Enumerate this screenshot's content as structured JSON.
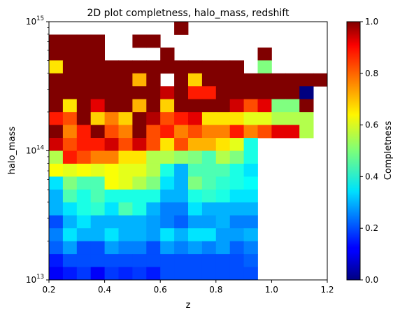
{
  "chart_data": {
    "type": "heatmap",
    "title": "2D plot completness, halo_mass, redshift",
    "xlabel": "z",
    "ylabel": "halo_mass",
    "x_range": [
      0.2,
      1.2
    ],
    "y_range": [
      10000000000000.0,
      1000000000000000.0
    ],
    "y_scale": "log",
    "x_bin_count": 20,
    "y_bin_count": 20,
    "colormap": "jet",
    "colorbar": {
      "label": "Completness",
      "range": [
        0,
        1
      ],
      "ticks": [
        "0.0",
        "0.2",
        "0.4",
        "0.6",
        "0.8",
        "1.0"
      ]
    },
    "x_ticks": [
      {
        "value": 0.2,
        "label": "0.2"
      },
      {
        "value": 0.4,
        "label": "0.4"
      },
      {
        "value": 0.6,
        "label": "0.6"
      },
      {
        "value": 0.8,
        "label": "0.8"
      },
      {
        "value": 1.0,
        "label": "1.0"
      },
      {
        "value": 1.2,
        "label": "1.2"
      }
    ],
    "y_ticks": [
      {
        "value": 10000000000000.0,
        "base": "10",
        "exp": "13"
      },
      {
        "value": 100000000000000.0,
        "base": "10",
        "exp": "14"
      },
      {
        "value": 1000000000000000.0,
        "base": "10",
        "exp": "15"
      }
    ],
    "grid": false,
    "note_rows": "values[0] is the top (highest mass) row, values[19] the bottom; null = empty bin",
    "values": [
      [
        null,
        null,
        null,
        null,
        null,
        null,
        null,
        null,
        null,
        1.0,
        null,
        null,
        null,
        null,
        null,
        null,
        null,
        null,
        null,
        null
      ],
      [
        1.0,
        1.0,
        1.0,
        1.0,
        null,
        null,
        1.0,
        1.0,
        null,
        null,
        null,
        null,
        null,
        null,
        null,
        null,
        null,
        null,
        null,
        null
      ],
      [
        1.0,
        1.0,
        1.0,
        1.0,
        null,
        null,
        null,
        null,
        1.0,
        null,
        null,
        null,
        null,
        null,
        null,
        1.0,
        null,
        null,
        null,
        null
      ],
      [
        0.65,
        1.0,
        1.0,
        1.0,
        1.0,
        1.0,
        1.0,
        1.0,
        1.0,
        1.0,
        1.0,
        1.0,
        1.0,
        1.0,
        null,
        0.5,
        null,
        null,
        null,
        null
      ],
      [
        1.0,
        1.0,
        1.0,
        1.0,
        1.0,
        1.0,
        0.7,
        1.0,
        null,
        1.0,
        0.67,
        1.0,
        1.0,
        1.0,
        1.0,
        1.0,
        1.0,
        1.0,
        1.0,
        1.0
      ],
      [
        1.0,
        1.0,
        1.0,
        1.0,
        1.0,
        1.0,
        1.0,
        1.0,
        0.93,
        1.0,
        0.85,
        0.85,
        1.0,
        1.0,
        1.0,
        1.0,
        1.0,
        1.0,
        0.0,
        null
      ],
      [
        1.0,
        0.65,
        1.0,
        0.9,
        1.0,
        1.0,
        0.7,
        1.0,
        0.67,
        1.0,
        1.0,
        1.0,
        1.0,
        0.92,
        0.8,
        0.9,
        0.5,
        0.5,
        1.0,
        null
      ],
      [
        0.85,
        0.8,
        1.0,
        0.67,
        0.75,
        0.67,
        1.0,
        0.95,
        0.8,
        0.85,
        0.9,
        0.65,
        0.65,
        0.65,
        0.6,
        0.6,
        0.55,
        0.55,
        0.55,
        null
      ],
      [
        1.0,
        0.75,
        0.85,
        1.0,
        0.8,
        0.75,
        1.0,
        0.8,
        0.85,
        0.75,
        0.8,
        0.75,
        0.75,
        0.85,
        0.75,
        0.8,
        0.9,
        0.9,
        0.55,
        null
      ],
      [
        0.92,
        0.8,
        0.85,
        0.85,
        0.92,
        0.8,
        0.92,
        0.8,
        0.65,
        0.8,
        0.7,
        0.7,
        0.65,
        0.6,
        0.4,
        null,
        null,
        null,
        null,
        null
      ],
      [
        0.55,
        0.85,
        0.8,
        0.75,
        0.75,
        0.65,
        0.65,
        0.55,
        0.55,
        0.52,
        0.5,
        0.45,
        0.55,
        0.5,
        0.4,
        null,
        null,
        null,
        null,
        null
      ],
      [
        0.62,
        0.6,
        0.62,
        0.6,
        0.62,
        0.6,
        0.6,
        0.55,
        0.4,
        0.3,
        0.45,
        0.45,
        0.45,
        0.4,
        0.35,
        null,
        null,
        null,
        null,
        null
      ],
      [
        0.35,
        0.5,
        0.45,
        0.45,
        0.62,
        0.6,
        0.55,
        0.5,
        0.35,
        0.3,
        0.5,
        0.45,
        0.42,
        0.4,
        0.38,
        null,
        null,
        null,
        null,
        null
      ],
      [
        0.3,
        0.45,
        0.4,
        0.45,
        0.4,
        0.4,
        0.4,
        0.4,
        0.3,
        0.3,
        0.4,
        0.42,
        0.4,
        0.35,
        0.35,
        null,
        null,
        null,
        null,
        null
      ],
      [
        0.3,
        0.35,
        0.4,
        0.42,
        0.35,
        0.45,
        0.4,
        0.3,
        0.25,
        0.25,
        0.35,
        0.3,
        0.3,
        0.3,
        0.3,
        null,
        null,
        null,
        null,
        null
      ],
      [
        0.2,
        0.3,
        0.35,
        0.3,
        0.3,
        0.3,
        0.3,
        0.28,
        0.25,
        0.22,
        0.28,
        0.28,
        0.3,
        0.25,
        0.25,
        null,
        null,
        null,
        null,
        null
      ],
      [
        0.25,
        0.35,
        0.3,
        0.3,
        0.35,
        0.3,
        0.3,
        0.28,
        0.35,
        0.3,
        0.35,
        0.35,
        0.28,
        0.28,
        0.3,
        null,
        null,
        null,
        null,
        null
      ],
      [
        0.22,
        0.28,
        0.2,
        0.2,
        0.28,
        0.25,
        0.25,
        0.2,
        0.28,
        0.25,
        0.28,
        0.25,
        0.28,
        0.22,
        0.25,
        null,
        null,
        null,
        null,
        null
      ],
      [
        0.15,
        0.2,
        0.2,
        0.2,
        0.2,
        0.2,
        0.2,
        0.2,
        0.2,
        0.2,
        0.2,
        0.2,
        0.2,
        0.2,
        0.22,
        null,
        null,
        null,
        null,
        null
      ],
      [
        0.12,
        0.15,
        0.18,
        0.12,
        0.18,
        0.16,
        0.18,
        0.15,
        0.2,
        0.2,
        0.2,
        0.2,
        0.2,
        0.2,
        0.2,
        null,
        null,
        null,
        null,
        null
      ]
    ]
  }
}
